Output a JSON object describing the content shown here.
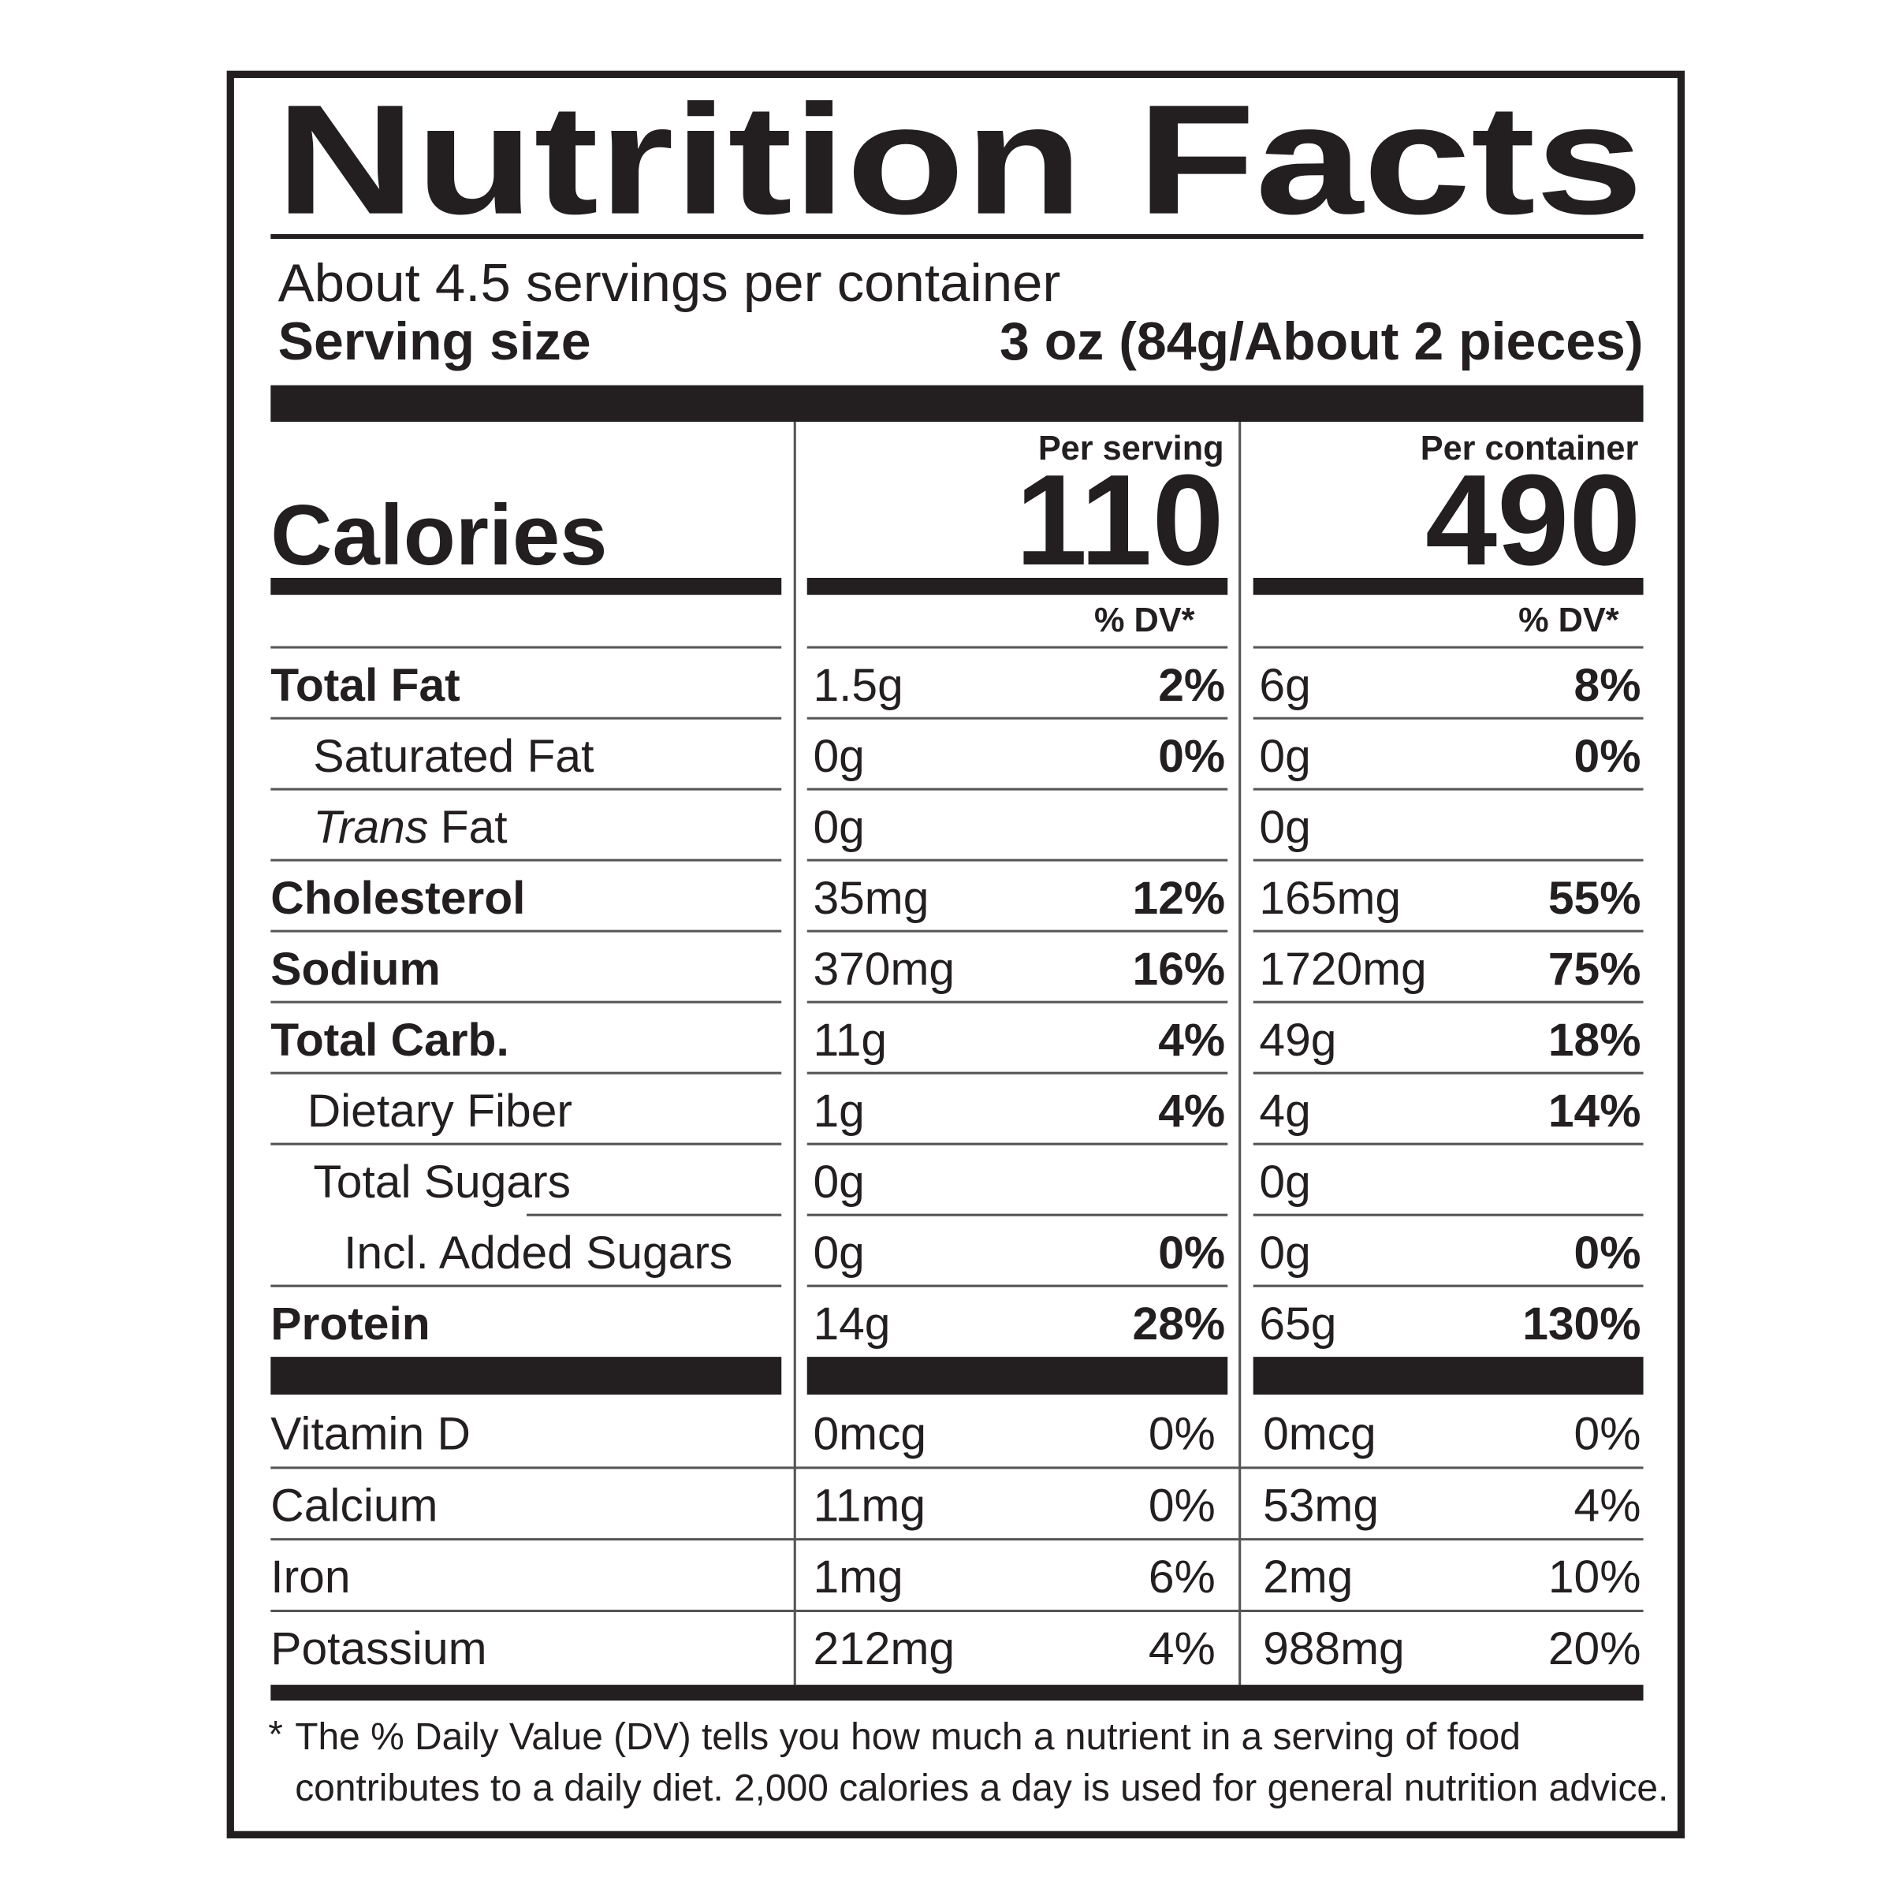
{
  "title": "Nutrition Facts",
  "servings": "About 4.5 servings per container",
  "serving_size": {
    "label": "Serving size",
    "value": "3 oz (84g/About 2 pieces)"
  },
  "calories": {
    "label": "Calories",
    "per_serving_header": "Per serving",
    "per_container_header": "Per container",
    "per_serving": "110",
    "per_container": "490",
    "dv_header": "% DV*"
  },
  "nutrients": {
    "rows": [
      {
        "name": "Total Fat",
        "level": 0,
        "serving_amount": "1.5g",
        "serving_dv": "2%",
        "container_amount": "6g",
        "container_dv": "8%"
      },
      {
        "name": "Saturated Fat",
        "level": 1,
        "serving_amount": "0g",
        "serving_dv": "0%",
        "container_amount": "0g",
        "container_dv": "0%"
      },
      {
        "name_italic": "Trans",
        "name": "Fat",
        "level": 1,
        "serving_amount": "0g",
        "serving_dv": null,
        "container_amount": "0g",
        "container_dv": null
      },
      {
        "name": "Cholesterol",
        "level": 0,
        "serving_amount": "35mg",
        "serving_dv": "12%",
        "container_amount": "165mg",
        "container_dv": "55%"
      },
      {
        "name": "Sodium",
        "level": 0,
        "serving_amount": "370mg",
        "serving_dv": "16%",
        "container_amount": "1720mg",
        "container_dv": "75%"
      },
      {
        "name": "Total Carb.",
        "level": 0,
        "serving_amount": "11g",
        "serving_dv": "4%",
        "container_amount": "49g",
        "container_dv": "18%"
      },
      {
        "name": "Dietary Fiber",
        "level": 1,
        "serving_amount": "1g",
        "serving_dv": "4%",
        "container_amount": "4g",
        "container_dv": "14%"
      },
      {
        "name": "Total Sugars",
        "level": 1,
        "serving_amount": "0g",
        "serving_dv": null,
        "container_amount": "0g",
        "container_dv": null
      },
      {
        "name": "Incl. Added Sugars",
        "level": 2,
        "serving_amount": "0g",
        "serving_dv": "0%",
        "container_amount": "0g",
        "container_dv": "0%"
      },
      {
        "name": "Protein",
        "level": 0,
        "serving_amount": "14g",
        "serving_dv": "28%",
        "container_amount": "65g",
        "container_dv": "130%"
      }
    ]
  },
  "vitamins": {
    "rows": [
      {
        "name": "Vitamin D",
        "serving_amount": "0mcg",
        "serving_dv": "0%",
        "container_amount": "0mcg",
        "container_dv": "0%"
      },
      {
        "name": "Calcium",
        "serving_amount": "11mg",
        "serving_dv": "0%",
        "container_amount": "53mg",
        "container_dv": "4%"
      },
      {
        "name": "Iron",
        "serving_amount": "1mg",
        "serving_dv": "6%",
        "container_amount": "2mg",
        "container_dv": "10%"
      },
      {
        "name": "Potassium",
        "serving_amount": "212mg",
        "serving_dv": "4%",
        "container_amount": "988mg",
        "container_dv": "20%"
      }
    ]
  },
  "footnote": {
    "marker": "*",
    "lines": [
      "The % Daily Value (DV) tells you how much a nutrient in a serving of food",
      "contributes to a daily diet. 2,000 calories a day is used for general nutrition advice."
    ]
  }
}
